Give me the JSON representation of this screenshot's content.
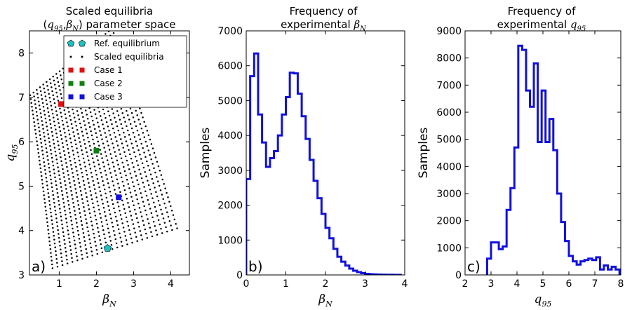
{
  "chart_data": [
    {
      "id": "a",
      "type": "scatter",
      "panel_label": "a)",
      "title_line1": "Scaled equilibria",
      "title_line2_prefix": "(",
      "title_line2_math1": "q",
      "title_line2_sub1": "95",
      "title_line2_comma": ",",
      "title_line2_math2": "β",
      "title_line2_sub2": "N",
      "title_line2_suffix": ") parameter space",
      "xlabel_math": "β",
      "xlabel_sub": "N",
      "ylabel_math": "q",
      "ylabel_sub": "95",
      "xlim": [
        0.2,
        4.5
      ],
      "ylim": [
        3.0,
        8.5
      ],
      "xticks": [
        1,
        2,
        3,
        4
      ],
      "yticks": [
        3,
        4,
        5,
        6,
        7,
        8
      ],
      "legend": {
        "position": "upper-right",
        "entries": [
          {
            "label": "Ref. equilibrium",
            "marker": "pentagon",
            "color": "#20c0c0"
          },
          {
            "label": "Scaled equilibria",
            "marker": "dot",
            "color": "#000000"
          },
          {
            "label": "Case 1",
            "marker": "square",
            "color": "#e01010"
          },
          {
            "label": "Case 2",
            "marker": "square",
            "color": "#108010"
          },
          {
            "label": "Case 3",
            "marker": "square",
            "color": "#1010e0"
          }
        ]
      },
      "grid": {
        "description": "family of arc-shaped curves of scaled equilibria",
        "arc_count": 26,
        "points_per_arc": 46
      },
      "points": [
        {
          "name": "Ref. equilibrium",
          "x": 2.3,
          "y": 3.6,
          "color": "#20c0c0",
          "marker": "pentagon"
        },
        {
          "name": "Case 1",
          "x": 1.05,
          "y": 6.85,
          "color": "#e01010",
          "marker": "square"
        },
        {
          "name": "Case 2",
          "x": 2.0,
          "y": 5.8,
          "color": "#108010",
          "marker": "square"
        },
        {
          "name": "Case 3",
          "x": 2.6,
          "y": 4.75,
          "color": "#1010e0",
          "marker": "square"
        }
      ]
    },
    {
      "id": "b",
      "type": "histogram",
      "panel_label": "b)",
      "title_line1": "Frequency of",
      "title_line2_prefix": "experimental ",
      "title_line2_math": "β",
      "title_line2_sub": "N",
      "xlabel_math": "β",
      "xlabel_sub": "N",
      "ylabel": "Samples",
      "xlim": [
        0,
        4
      ],
      "ylim": [
        0,
        7000
      ],
      "xticks": [
        0,
        1,
        2,
        3,
        4
      ],
      "yticks": [
        0,
        1000,
        2000,
        3000,
        4000,
        5000,
        6000,
        7000
      ],
      "color": "#1010e0",
      "bin_edges": [
        0.0,
        0.1,
        0.2,
        0.3,
        0.4,
        0.5,
        0.6,
        0.7,
        0.8,
        0.9,
        1.0,
        1.1,
        1.2,
        1.3,
        1.4,
        1.5,
        1.6,
        1.7,
        1.8,
        1.9,
        2.0,
        2.1,
        2.2,
        2.3,
        2.4,
        2.5,
        2.6,
        2.7,
        2.8,
        2.9,
        3.0,
        3.1,
        3.2,
        3.3,
        3.4,
        3.5,
        3.6,
        3.7,
        3.8,
        3.9
      ],
      "counts": [
        2750,
        5700,
        6350,
        4600,
        3800,
        3100,
        3350,
        3550,
        4000,
        4600,
        5100,
        5800,
        5780,
        5200,
        4550,
        3900,
        3300,
        2700,
        2200,
        1750,
        1350,
        1050,
        750,
        520,
        380,
        270,
        180,
        120,
        80,
        50,
        30,
        20,
        15,
        10,
        8,
        5,
        4,
        3,
        2
      ]
    },
    {
      "id": "c",
      "type": "histogram",
      "panel_label": "c)",
      "title_line1": "Frequency of",
      "title_line2_prefix": "experimental ",
      "title_line2_math": "q",
      "title_line2_sub": "95",
      "xlabel_math": "q",
      "xlabel_sub": "95",
      "ylabel": "Samples",
      "xlim": [
        2,
        8
      ],
      "ylim": [
        0,
        9000
      ],
      "xticks": [
        2,
        3,
        4,
        5,
        6,
        7,
        8
      ],
      "yticks": [
        0,
        1000,
        2000,
        3000,
        4000,
        5000,
        6000,
        7000,
        8000,
        9000
      ],
      "color": "#1010e0",
      "bin_edges": [
        2.85,
        3.0,
        3.15,
        3.3,
        3.45,
        3.6,
        3.75,
        3.9,
        4.05,
        4.2,
        4.35,
        4.5,
        4.65,
        4.8,
        4.95,
        5.1,
        5.25,
        5.4,
        5.55,
        5.7,
        5.85,
        6.0,
        6.15,
        6.3,
        6.45,
        6.6,
        6.75,
        6.9,
        7.05,
        7.2,
        7.35,
        7.5,
        7.65,
        7.8,
        7.95
      ],
      "counts": [
        600,
        1200,
        1200,
        950,
        1050,
        2400,
        3200,
        4700,
        8450,
        8300,
        6800,
        6200,
        7800,
        4900,
        6800,
        4900,
        5750,
        4600,
        3000,
        1950,
        1250,
        700,
        500,
        380,
        500,
        550,
        600,
        550,
        650,
        200,
        350,
        200,
        300,
        200
      ]
    }
  ]
}
